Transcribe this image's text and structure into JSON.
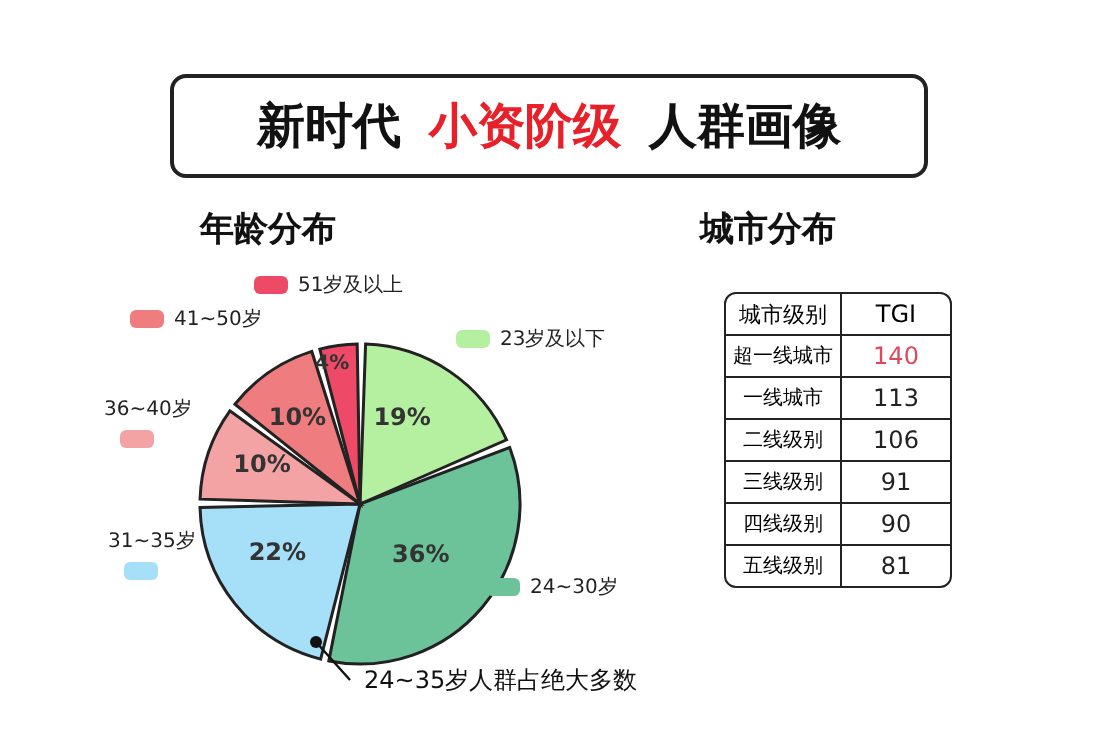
{
  "chart_data": [
    {
      "type": "pie",
      "title": "新时代 小资阶级 人群画像",
      "subtitle": "年龄分布",
      "categories": [
        "23岁及以下",
        "24~30岁",
        "31~35岁",
        "36~40岁",
        "41~50岁",
        "51岁及以上"
      ],
      "values": [
        19,
        36,
        22,
        10,
        10,
        4
      ],
      "value_labels": [
        "19%",
        "36%",
        "22%",
        "10%",
        "10%",
        "4%"
      ],
      "colors": [
        "#b5f0a0",
        "#6cc39a",
        "#a5dff8",
        "#f4a3a5",
        "#ef7c7e",
        "#ee4a68"
      ],
      "legend": "left",
      "annotations": [
        "24~35岁人群占绝大多数"
      ]
    },
    {
      "type": "other",
      "title": "城市分布",
      "xlabel": "城市级别",
      "ylabel": "TGI",
      "categories": [
        "超一线城市",
        "一线城市",
        "二线级别",
        "三线级别",
        "四线级别",
        "五线级别"
      ],
      "values": [
        140,
        113,
        106,
        91,
        90,
        81
      ],
      "data_labels": true,
      "colors": [
        "#e0475a",
        "#222222",
        "#222222",
        "#222222",
        "#222222",
        "#222222"
      ]
    }
  ]
}
